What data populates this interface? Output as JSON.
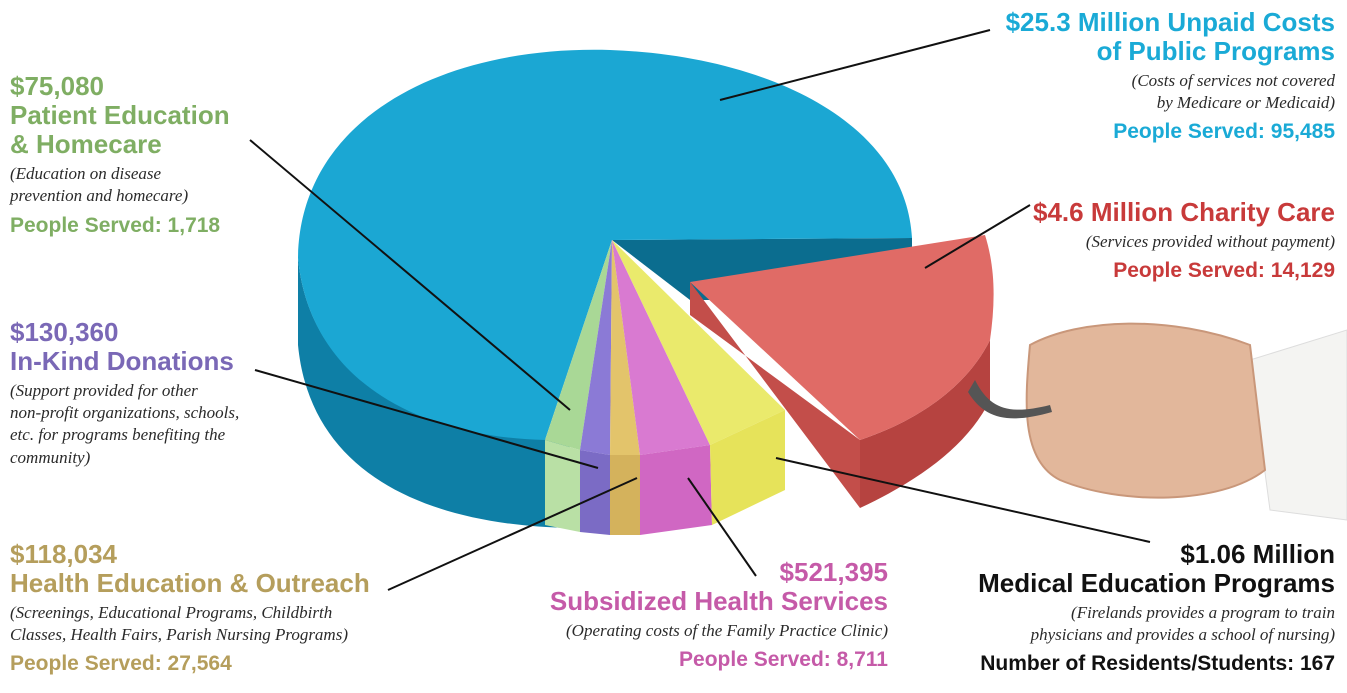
{
  "chart_data": {
    "type": "pie",
    "unit": "USD",
    "slices": [
      {
        "amount": "$25.3 Million",
        "value": 25300000,
        "title": "Unpaid Costs of Public Programs",
        "description": "(Costs of services not covered by Medicare or Medicaid)",
        "served_label": "People Served: 95,485",
        "color": "#1aa4cf"
      },
      {
        "amount": "$4.6 Million",
        "value": 4600000,
        "title": "Charity Care",
        "description": "(Services provided without payment)",
        "served_label": "People Served: 14,129",
        "color": "#e06b66"
      },
      {
        "amount": "$1.06 Million",
        "value": 1060000,
        "title": "Medical Education Programs",
        "description": "(Firelands provides a program to train physicians and provides a school of nursing)",
        "served_label": "Number of Residents/Students: 167",
        "color": "#eaea6c"
      },
      {
        "amount": "$521,395",
        "value": 521395,
        "title": "Subsidized Health Services",
        "description": "(Operating costs of the Family Practice Clinic)",
        "served_label": "People Served: 8,711",
        "color": "#d97ad1"
      },
      {
        "amount": "$118,034",
        "value": 118034,
        "title": "Health Education & Outreach",
        "description": "(Screenings, Educational Programs, Childbirth Classes, Health Fairs, Parish Nursing Programs)",
        "served_label": "People Served: 27,564",
        "color": "#e3c46b"
      },
      {
        "amount": "$130,360",
        "value": 130360,
        "title": "In-Kind Donations",
        "description": "(Support provided for other non-profit organizations, schools, etc. for programs benefiting the community)",
        "served_label": "",
        "color": "#8b7ad6"
      },
      {
        "amount": "$75,080",
        "value": 75080,
        "title": "Patient Education & Homecare",
        "description": "(Education on disease prevention and homecare)",
        "served_label": "People Served: 1,718",
        "color": "#a9d896"
      }
    ]
  },
  "labels": {
    "unpaid": {
      "line1": "$25.3 Million Unpaid Costs",
      "line2": "of Public Programs",
      "desc1": "(Costs of services not covered",
      "desc2": "by Medicare or Medicaid)",
      "served": "People Served: 95,485"
    },
    "charity": {
      "line1": "$4.6 Million Charity Care",
      "desc1": "(Services provided without payment)",
      "served": "People Served: 14,129"
    },
    "meded": {
      "line1": "$1.06 Million",
      "line2": "Medical Education Programs",
      "desc1": "(Firelands provides a program to train",
      "desc2": "physicians and provides a school of nursing)",
      "served": "Number of Residents/Students: 167"
    },
    "subsidized": {
      "line1": "$521,395",
      "line2": "Subsidized Health Services",
      "desc1": "(Operating costs of the Family Practice Clinic)",
      "served": "People Served: 8,711"
    },
    "outreach": {
      "line1": "$118,034",
      "line2": "Health Education & Outreach",
      "desc1": "(Screenings, Educational Programs, Childbirth",
      "desc2": "Classes, Health Fairs, Parish Nursing Programs)",
      "served": "People Served: 27,564"
    },
    "inkind": {
      "line1": "$130,360",
      "line2": "In-Kind Donations",
      "desc1": "(Support provided for other",
      "desc2": "non-profit organizations, schools,",
      "desc3": "etc. for programs benefiting the",
      "desc4": "community)"
    },
    "patient": {
      "line1": "$75,080",
      "line2": "Patient Education",
      "line3": "& Homecare",
      "desc1": "(Education on disease",
      "desc2": "prevention and homecare)",
      "served": "People Served: 1,718"
    }
  }
}
